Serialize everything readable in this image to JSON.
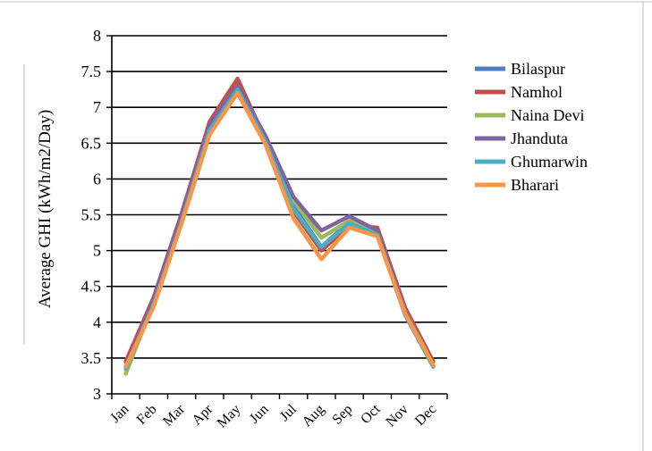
{
  "chart_data": {
    "type": "line",
    "title": "",
    "xlabel": "",
    "ylabel": "Average GHI (kWh/m2/Day)",
    "ylim": [
      3,
      8
    ],
    "yticks": [
      "3",
      "3.5",
      "4",
      "4.5",
      "5",
      "5.5",
      "6",
      "6.5",
      "7",
      "7.5",
      "8"
    ],
    "grid": true,
    "legend_position": "right",
    "categories": [
      "Jan",
      "Feb",
      "Mar",
      "Apr",
      "May",
      "Jun",
      "Jul",
      "Aug",
      "Sep",
      "Oct",
      "Nov",
      "Dec"
    ],
    "series": [
      {
        "name": "Bilaspur",
        "color": "#4f81bd",
        "values": [
          3.38,
          4.3,
          5.45,
          6.72,
          7.32,
          6.58,
          5.62,
          5.05,
          5.4,
          5.25,
          4.1,
          3.38
        ]
      },
      {
        "name": "Namhol",
        "color": "#c0504d",
        "values": [
          3.45,
          4.35,
          5.52,
          6.8,
          7.4,
          6.55,
          5.55,
          5.0,
          5.35,
          5.32,
          4.2,
          3.45
        ]
      },
      {
        "name": "Naina Devi",
        "color": "#9bbb59",
        "values": [
          3.28,
          4.28,
          5.45,
          6.7,
          7.28,
          6.52,
          5.7,
          5.18,
          5.42,
          5.25,
          4.15,
          3.4
        ]
      },
      {
        "name": "Jhanduta",
        "color": "#8064a2",
        "values": [
          3.38,
          4.32,
          5.48,
          6.75,
          7.3,
          6.6,
          5.75,
          5.28,
          5.48,
          5.28,
          4.15,
          3.38
        ]
      },
      {
        "name": "Ghumarwin",
        "color": "#4bacc6",
        "values": [
          3.35,
          4.25,
          5.4,
          6.68,
          7.25,
          6.52,
          5.58,
          5.05,
          5.38,
          5.22,
          4.1,
          3.38
        ]
      },
      {
        "name": "Bharari",
        "color": "#f79646",
        "values": [
          3.38,
          4.22,
          5.38,
          6.62,
          7.2,
          6.48,
          5.45,
          4.88,
          5.32,
          5.2,
          4.12,
          3.4
        ]
      }
    ]
  }
}
